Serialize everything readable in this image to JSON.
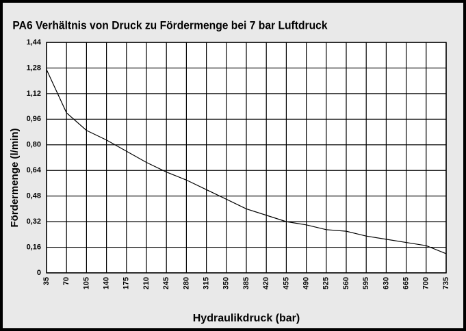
{
  "chart_data": {
    "type": "line",
    "title": "PA6 Verhältnis von Druck zu Fördermenge bei 7 bar Luftdruck",
    "xlabel": "Hydraulikdruck (bar)",
    "ylabel": "Fördermenge (l/min)",
    "x": [
      35,
      70,
      105,
      140,
      175,
      210,
      245,
      280,
      315,
      350,
      385,
      420,
      455,
      490,
      525,
      560,
      595,
      630,
      665,
      700,
      735
    ],
    "values": [
      1.27,
      1.0,
      0.89,
      0.83,
      0.76,
      0.69,
      0.63,
      0.58,
      0.52,
      0.46,
      0.4,
      0.36,
      0.32,
      0.3,
      0.27,
      0.26,
      0.23,
      0.21,
      0.19,
      0.17,
      0.12
    ],
    "color": "#000000",
    "xlim": [
      35,
      735
    ],
    "xticks": [
      35,
      70,
      105,
      140,
      175,
      210,
      245,
      280,
      315,
      350,
      385,
      420,
      455,
      490,
      525,
      560,
      595,
      630,
      665,
      700,
      735
    ],
    "ylim": [
      0,
      1.44
    ],
    "yticks": [
      0,
      {
        "value": 0.16,
        "label": "0,16"
      },
      {
        "value": 0.32,
        "label": "0,32"
      },
      {
        "value": 0.48,
        "label": "0,48"
      },
      {
        "value": 0.64,
        "label": "0,64"
      },
      {
        "value": 0.8,
        "label": "0,80"
      },
      {
        "value": 0.96,
        "label": "0,96"
      },
      {
        "value": 1.12,
        "label": "1,12"
      },
      {
        "value": 1.28,
        "label": "1,28"
      },
      {
        "value": 1.44,
        "label": "1,44"
      }
    ],
    "grid": true
  }
}
